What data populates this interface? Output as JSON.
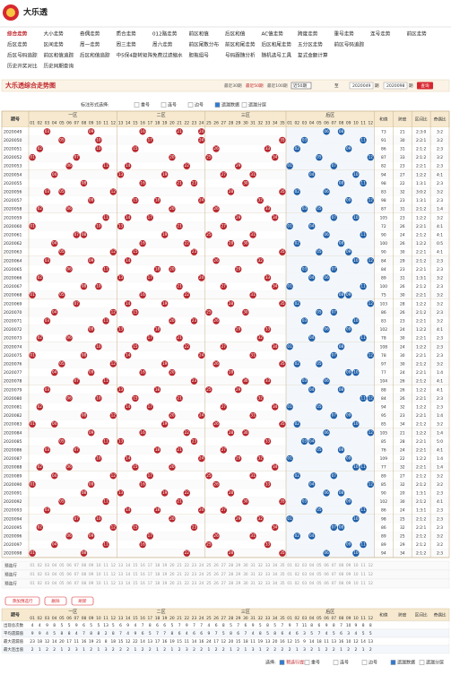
{
  "header": {
    "logo": "大乐透"
  },
  "nav": [
    [
      "综合走势",
      "大小走势",
      "奇偶走势",
      "质合走势",
      "012路走势",
      "前区和值",
      "后区和值",
      "AC值走势",
      "跨度走势",
      "重号走势",
      "连号走势",
      "前区走势"
    ],
    [
      "后区走势",
      "区间走势",
      "周一走势",
      "周三走势",
      "周六走势",
      "前区尾数分布",
      "前区和尾走势",
      "后区和尾走势",
      "五分区走势",
      "前区号码追踪"
    ],
    [
      "后区号码追踪",
      "前区和值追踪",
      "后区和值追踪",
      "中5保4旋转矩阵",
      "免费过滤缩水",
      "胆拖组号",
      "号码跟随分析",
      "随机选号工具",
      "复式金额计算"
    ],
    [
      "历史开奖对比",
      "历史同期查询"
    ]
  ],
  "titlebar": {
    "title": "大乐透综合走势图",
    "recent": [
      "最近30期",
      "最近50期",
      "最近100期"
    ],
    "select": "近50期",
    "from": "2020049",
    "to_label": "至",
    "to": "2020098",
    "unit": "期",
    "query": "查询"
  },
  "options": {
    "label": "标注形式选择:",
    "items": [
      "重号",
      "连号",
      "边号",
      "遗漏数据",
      "遗漏分层"
    ]
  },
  "table": {
    "header": {
      "issue": "期号",
      "zones": [
        "一区",
        "二区",
        "三区",
        "后区"
      ],
      "stats": [
        "和值",
        "跨度",
        "区间比",
        "奇偶比"
      ]
    },
    "front_numbers": [
      "01",
      "02",
      "03",
      "04",
      "05",
      "06",
      "07",
      "08",
      "09",
      "10",
      "11",
      "12",
      "13",
      "14",
      "15",
      "16",
      "17",
      "18",
      "19",
      "20",
      "21",
      "22",
      "23",
      "24",
      "25",
      "26",
      "27",
      "28",
      "29",
      "30",
      "31",
      "32",
      "33",
      "34",
      "35"
    ],
    "back_numbers": [
      "01",
      "02",
      "03",
      "04",
      "05",
      "06",
      "07",
      "08",
      "09",
      "10",
      "11",
      "12"
    ],
    "rows": [
      {
        "issue": "2020049",
        "front": [
          "03",
          "09",
          "16",
          "21",
          "24"
        ],
        "back": [
          "06",
          "08"
        ],
        "sum": 73,
        "span": 21,
        "zone": "2:3:0",
        "odd": "3:2"
      },
      {
        "issue": "2020050",
        "front": [
          "05",
          "10",
          "17",
          "24",
          "35"
        ],
        "back": [
          "03",
          "11"
        ],
        "sum": 91,
        "span": 30,
        "zone": "2:2:1",
        "odd": "3:2"
      },
      {
        "issue": "2020051",
        "front": [
          "02",
          "10",
          "15",
          "26",
          "33"
        ],
        "back": [
          "02",
          "09"
        ],
        "sum": 86,
        "span": 31,
        "zone": "2:1:2",
        "odd": "2:3"
      },
      {
        "issue": "2020052",
        "front": [
          "01",
          "07",
          "20",
          "25",
          "34"
        ],
        "back": [
          "05",
          "12"
        ],
        "sum": 87,
        "span": 33,
        "zone": "2:1:2",
        "odd": "3:2"
      },
      {
        "issue": "2020053",
        "front": [
          "06",
          "11",
          "14",
          "22",
          "29"
        ],
        "back": [
          "01",
          "07"
        ],
        "sum": 82,
        "span": 23,
        "zone": "2:2:1",
        "odd": "2:3"
      },
      {
        "issue": "2020054",
        "front": [
          "04",
          "13",
          "19",
          "27",
          "31"
        ],
        "back": [
          "04",
          "10"
        ],
        "sum": 94,
        "span": 27,
        "zone": "1:2:2",
        "odd": "4:1"
      },
      {
        "issue": "2020055",
        "front": [
          "08",
          "16",
          "21",
          "23",
          "30"
        ],
        "back": [
          "08",
          "11"
        ],
        "sum": 98,
        "span": 22,
        "zone": "1:3:1",
        "odd": "2:3"
      },
      {
        "issue": "2020056",
        "front": [
          "03",
          "05",
          "12",
          "28",
          "35"
        ],
        "back": [
          "02",
          "06"
        ],
        "sum": 83,
        "span": 32,
        "zone": "3:0:2",
        "odd": "3:2"
      },
      {
        "issue": "2020057",
        "front": [
          "09",
          "15",
          "18",
          "24",
          "32"
        ],
        "back": [
          "09",
          "12"
        ],
        "sum": 98,
        "span": 23,
        "zone": "1:3:1",
        "odd": "2:3"
      },
      {
        "issue": "2020058",
        "front": [
          "02",
          "06",
          "20",
          "26",
          "33"
        ],
        "back": [
          "03",
          "05"
        ],
        "sum": 87,
        "span": 31,
        "zone": "2:1:2",
        "odd": "1:4"
      },
      {
        "issue": "2020059",
        "front": [
          "11",
          "14",
          "17",
          "29",
          "34"
        ],
        "back": [
          "07",
          "10"
        ],
        "sum": 105,
        "span": 23,
        "zone": "1:2:2",
        "odd": "3:2"
      },
      {
        "issue": "2020060",
        "front": [
          "01",
          "10",
          "13",
          "21",
          "27"
        ],
        "back": [
          "01",
          "04"
        ],
        "sum": 72,
        "span": 26,
        "zone": "2:2:1",
        "odd": "4:1"
      },
      {
        "issue": "2020061",
        "front": [
          "07",
          "08",
          "19",
          "25",
          "31"
        ],
        "back": [
          "06",
          "11"
        ],
        "sum": 90,
        "span": 24,
        "zone": "2:1:2",
        "odd": "4:1"
      },
      {
        "issue": "2020062",
        "front": [
          "04",
          "16",
          "22",
          "28",
          "30"
        ],
        "back": [
          "02",
          "08"
        ],
        "sum": 100,
        "span": 26,
        "zone": "1:2:2",
        "odd": "0:5"
      },
      {
        "issue": "2020063",
        "front": [
          "05",
          "12",
          "15",
          "23",
          "35"
        ],
        "back": [
          "05",
          "09"
        ],
        "sum": 90,
        "span": 30,
        "zone": "2:2:1",
        "odd": "4:1"
      },
      {
        "issue": "2020064",
        "front": [
          "03",
          "09",
          "14",
          "26",
          "32"
        ],
        "back": [
          "10",
          "12"
        ],
        "sum": 84,
        "span": 29,
        "zone": "2:1:2",
        "odd": "2:3"
      },
      {
        "issue": "2020065",
        "front": [
          "06",
          "11",
          "18",
          "20",
          "29"
        ],
        "back": [
          "03",
          "07"
        ],
        "sum": 84,
        "span": 23,
        "zone": "2:2:1",
        "odd": "2:3"
      },
      {
        "issue": "2020066",
        "front": [
          "02",
          "13",
          "17",
          "24",
          "33"
        ],
        "back": [
          "04",
          "06"
        ],
        "sum": 89,
        "span": 31,
        "zone": "1:3:1",
        "odd": "3:2"
      },
      {
        "issue": "2020067",
        "front": [
          "08",
          "10",
          "21",
          "27",
          "34"
        ],
        "back": [
          "01",
          "11"
        ],
        "sum": 100,
        "span": 26,
        "zone": "2:1:2",
        "odd": "2:3"
      },
      {
        "issue": "2020068",
        "front": [
          "01",
          "05",
          "16",
          "22",
          "31"
        ],
        "back": [
          "08",
          "09"
        ],
        "sum": 75,
        "span": 30,
        "zone": "2:2:1",
        "odd": "3:2"
      },
      {
        "issue": "2020069",
        "front": [
          "07",
          "14",
          "19",
          "28",
          "35"
        ],
        "back": [
          "02",
          "12"
        ],
        "sum": 103,
        "span": 28,
        "zone": "1:2:2",
        "odd": "3:2"
      },
      {
        "issue": "2020070",
        "front": [
          "04",
          "12",
          "15",
          "25",
          "30"
        ],
        "back": [
          "05",
          "07"
        ],
        "sum": 86,
        "span": 26,
        "zone": "2:1:2",
        "odd": "2:3"
      },
      {
        "issue": "2020071",
        "front": [
          "03",
          "11",
          "20",
          "23",
          "26"
        ],
        "back": [
          "03",
          "10"
        ],
        "sum": 83,
        "span": 23,
        "zone": "2:2:1",
        "odd": "3:2"
      },
      {
        "issue": "2020072",
        "front": [
          "09",
          "13",
          "18",
          "29",
          "33"
        ],
        "back": [
          "06",
          "09"
        ],
        "sum": 102,
        "span": 24,
        "zone": "1:2:2",
        "odd": "4:1"
      },
      {
        "issue": "2020073",
        "front": [
          "02",
          "06",
          "17",
          "21",
          "32"
        ],
        "back": [
          "04",
          "11"
        ],
        "sum": 78,
        "span": 30,
        "zone": "2:2:1",
        "odd": "2:3"
      },
      {
        "issue": "2020074",
        "front": [
          "10",
          "15",
          "22",
          "27",
          "34"
        ],
        "back": [
          "01",
          "08"
        ],
        "sum": 108,
        "span": 24,
        "zone": "1:2:2",
        "odd": "2:3"
      },
      {
        "issue": "2020075",
        "front": [
          "01",
          "08",
          "14",
          "24",
          "31"
        ],
        "back": [
          "07",
          "12"
        ],
        "sum": 78,
        "span": 30,
        "zone": "2:2:1",
        "odd": "2:3"
      },
      {
        "issue": "2020076",
        "front": [
          "05",
          "12",
          "19",
          "26",
          "35"
        ],
        "back": [
          "02",
          "05"
        ],
        "sum": 97,
        "span": 30,
        "zone": "2:1:2",
        "odd": "3:2"
      },
      {
        "issue": "2020077",
        "front": [
          "04",
          "09",
          "16",
          "20",
          "28"
        ],
        "back": [
          "09",
          "10"
        ],
        "sum": 77,
        "span": 24,
        "zone": "2:2:1",
        "odd": "1:4"
      },
      {
        "issue": "2020078",
        "front": [
          "07",
          "11",
          "23",
          "30",
          "33"
        ],
        "back": [
          "03",
          "06"
        ],
        "sum": 104,
        "span": 26,
        "zone": "2:1:2",
        "odd": "4:1"
      },
      {
        "issue": "2020079",
        "front": [
          "03",
          "13",
          "18",
          "25",
          "29"
        ],
        "back": [
          "04",
          "08"
        ],
        "sum": 88,
        "span": 26,
        "zone": "1:2:2",
        "odd": "4:1"
      },
      {
        "issue": "2020080",
        "front": [
          "06",
          "10",
          "15",
          "21",
          "32"
        ],
        "back": [
          "11",
          "12"
        ],
        "sum": 84,
        "span": 26,
        "zone": "2:2:1",
        "odd": "2:3"
      },
      {
        "issue": "2020081",
        "front": [
          "02",
          "14",
          "17",
          "27",
          "34"
        ],
        "back": [
          "01",
          "05"
        ],
        "sum": 94,
        "span": 32,
        "zone": "1:2:2",
        "odd": "2:3"
      },
      {
        "issue": "2020082",
        "front": [
          "08",
          "12",
          "20",
          "24",
          "31"
        ],
        "back": [
          "07",
          "09"
        ],
        "sum": 95,
        "span": 23,
        "zone": "2:2:1",
        "odd": "1:4"
      },
      {
        "issue": "2020083",
        "front": [
          "01",
          "04",
          "19",
          "26",
          "35"
        ],
        "back": [
          "02",
          "10"
        ],
        "sum": 85,
        "span": 34,
        "zone": "2:1:2",
        "odd": "3:2"
      },
      {
        "issue": "2020084",
        "front": [
          "09",
          "16",
          "22",
          "28",
          "30"
        ],
        "back": [
          "06",
          "12"
        ],
        "sum": 105,
        "span": 21,
        "zone": "1:2:2",
        "odd": "1:4"
      },
      {
        "issue": "2020085",
        "front": [
          "05",
          "11",
          "13",
          "23",
          "33"
        ],
        "back": [
          "03",
          "04"
        ],
        "sum": 85,
        "span": 28,
        "zone": "2:2:1",
        "odd": "5:0"
      },
      {
        "issue": "2020086",
        "front": [
          "03",
          "07",
          "18",
          "21",
          "27"
        ],
        "back": [
          "05",
          "08"
        ],
        "sum": 76,
        "span": 24,
        "zone": "2:2:1",
        "odd": "4:1"
      },
      {
        "issue": "2020087",
        "front": [
          "10",
          "14",
          "24",
          "29",
          "32"
        ],
        "back": [
          "01",
          "09"
        ],
        "sum": 109,
        "span": 22,
        "zone": "1:2:2",
        "odd": "1:4"
      },
      {
        "issue": "2020088",
        "front": [
          "02",
          "06",
          "15",
          "20",
          "34"
        ],
        "back": [
          "10",
          "11"
        ],
        "sum": 77,
        "span": 32,
        "zone": "2:2:1",
        "odd": "1:4"
      },
      {
        "issue": "2020089",
        "front": [
          "04",
          "12",
          "17",
          "25",
          "31"
        ],
        "back": [
          "02",
          "07"
        ],
        "sum": 89,
        "span": 27,
        "zone": "2:1:2",
        "odd": "3:2"
      },
      {
        "issue": "2020090",
        "front": [
          "01",
          "09",
          "16",
          "26",
          "33"
        ],
        "back": [
          "04",
          "12"
        ],
        "sum": 85,
        "span": 32,
        "zone": "2:1:2",
        "odd": "3:2"
      },
      {
        "issue": "2020091",
        "front": [
          "08",
          "13",
          "19",
          "22",
          "28"
        ],
        "back": [
          "06",
          "08"
        ],
        "sum": 90,
        "span": 20,
        "zone": "1:3:1",
        "odd": "2:3"
      },
      {
        "issue": "2020092",
        "front": [
          "05",
          "11",
          "21",
          "30",
          "35"
        ],
        "back": [
          "03",
          "09"
        ],
        "sum": 102,
        "span": 30,
        "zone": "2:1:2",
        "odd": "4:1"
      },
      {
        "issue": "2020093",
        "front": [
          "03",
          "14",
          "18",
          "24",
          "27"
        ],
        "back": [
          "05",
          "11"
        ],
        "sum": 86,
        "span": 24,
        "zone": "1:3:1",
        "odd": "2:3"
      },
      {
        "issue": "2020094",
        "front": [
          "07",
          "10",
          "20",
          "29",
          "32"
        ],
        "back": [
          "01",
          "10"
        ],
        "sum": 98,
        "span": 25,
        "zone": "2:1:2",
        "odd": "2:3"
      },
      {
        "issue": "2020095",
        "front": [
          "02",
          "12",
          "15",
          "23",
          "34"
        ],
        "back": [
          "07",
          "08"
        ],
        "sum": 86,
        "span": 32,
        "zone": "2:2:1",
        "odd": "2:3"
      },
      {
        "issue": "2020096",
        "front": [
          "06",
          "09",
          "17",
          "26",
          "31"
        ],
        "back": [
          "02",
          "04"
        ],
        "sum": 89,
        "span": 25,
        "zone": "2:1:2",
        "odd": "3:2"
      },
      {
        "issue": "2020097",
        "front": [
          "04",
          "11",
          "16",
          "25",
          "33"
        ],
        "back": [
          "09",
          "11"
        ],
        "sum": 89,
        "span": 29,
        "zone": "2:1:2",
        "odd": "3:2"
      },
      {
        "issue": "2020098",
        "front": [
          "01",
          "08",
          "22",
          "28",
          "35"
        ],
        "back": [
          "06",
          "10"
        ],
        "sum": 94,
        "span": 34,
        "zone": "2:1:2",
        "odd": "2:3"
      }
    ],
    "preselect_label": "预选行"
  },
  "buttons": [
    "添加预选行",
    "删除",
    "刷新"
  ],
  "stats": {
    "rows": [
      {
        "label": "出现总次数",
        "front": [
          4,
          4,
          9,
          8,
          5,
          5,
          9,
          6,
          5,
          5,
          13,
          5,
          6,
          9,
          4,
          7,
          8,
          6,
          6,
          5,
          7,
          9,
          7,
          7,
          4,
          6,
          8,
          5,
          7,
          6,
          9,
          5,
          8,
          5,
          7
        ],
        "back": [
          9,
          7,
          11,
          8,
          6,
          9,
          8,
          7,
          10,
          9,
          8,
          8
        ]
      },
      {
        "label": "平均遗漏值",
        "front": [
          9,
          9,
          4,
          5,
          8,
          8,
          4,
          7,
          8,
          8,
          2,
          8,
          7,
          4,
          9,
          6,
          5,
          7,
          7,
          8,
          6,
          4,
          6,
          6,
          9,
          7,
          5,
          8,
          6,
          7,
          4,
          8,
          5,
          8,
          6
        ],
        "back": [
          4,
          6,
          3,
          5,
          7,
          4,
          5,
          6,
          3,
          4,
          5,
          5
        ]
      },
      {
        "label": "最大遗漏值",
        "front": [
          23,
          18,
          12,
          14,
          20,
          17,
          11,
          16,
          19,
          21,
          8,
          18,
          15,
          12,
          22,
          14,
          13,
          17,
          16,
          19,
          15,
          11,
          14,
          16,
          24,
          17,
          12,
          20,
          15,
          18,
          11,
          19,
          13,
          20,
          16
        ],
        "back": [
          12,
          15,
          9,
          14,
          18,
          11,
          13,
          16,
          10,
          12,
          14,
          13
        ]
      },
      {
        "label": "最大连出值",
        "front": [
          2,
          1,
          2,
          2,
          1,
          2,
          3,
          1,
          2,
          1,
          3,
          2,
          2,
          2,
          1,
          2,
          2,
          1,
          2,
          1,
          2,
          3,
          2,
          2,
          1,
          2,
          2,
          1,
          2,
          1,
          3,
          1,
          2,
          2,
          2
        ],
        "back": [
          2,
          1,
          3,
          2,
          1,
          2,
          2,
          1,
          2,
          2,
          1,
          2
        ]
      }
    ]
  },
  "footer": {
    "label": "选择:",
    "items": [
      "预选行提示",
      "重号",
      "连号",
      "边号",
      "遗漏数据",
      "遗漏分层"
    ]
  }
}
